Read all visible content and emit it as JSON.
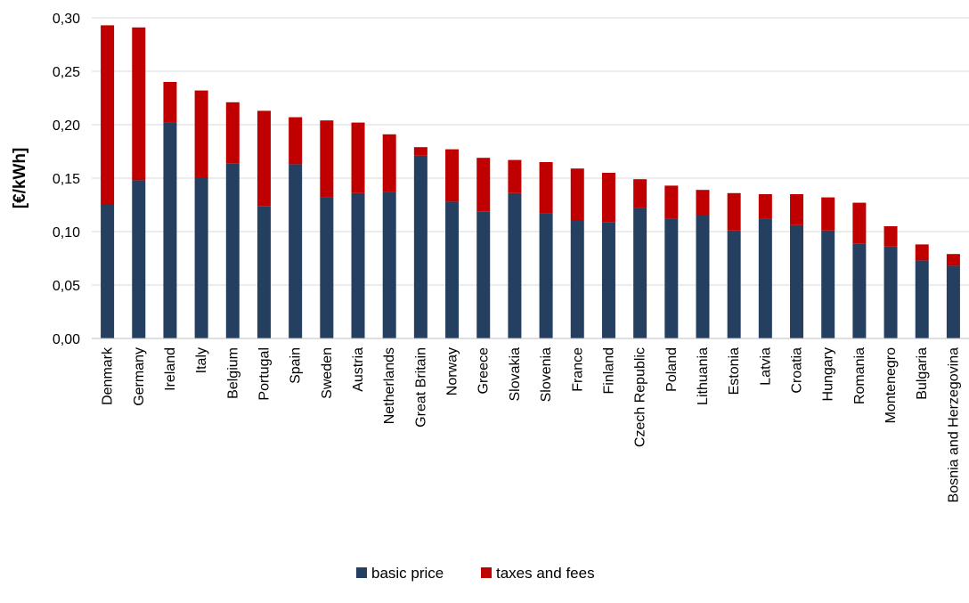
{
  "chart_data": {
    "type": "bar",
    "stacked": true,
    "ylabel": "[€/kWh]",
    "xlabel": "",
    "ylim": [
      0,
      0.3
    ],
    "yticks": [
      "0,00",
      "0,05",
      "0,10",
      "0,15",
      "0,20",
      "0,25",
      "0,30"
    ],
    "grid": true,
    "legend_position": "bottom",
    "categories": [
      "Denmark",
      "Germany",
      "Ireland",
      "Italy",
      "Belgium",
      "Portugal",
      "Spain",
      "Sweden",
      "Austria",
      "Netherlands",
      "Great Britain",
      "Norway",
      "Greece",
      "Slovakia",
      "Slovenia",
      "France",
      "Finland",
      "Czech Republic",
      "Poland",
      "Lithuania",
      "Estonia",
      "Latvia",
      "Croatia",
      "Hungary",
      "Romania",
      "Montenegro",
      "Bulgaria",
      "Bosnia and Herzegovina"
    ],
    "series": [
      {
        "name": "basic price",
        "color": "#243f60",
        "values": [
          0.125,
          0.148,
          0.202,
          0.15,
          0.164,
          0.124,
          0.163,
          0.132,
          0.136,
          0.137,
          0.171,
          0.128,
          0.119,
          0.136,
          0.117,
          0.11,
          0.109,
          0.122,
          0.112,
          0.115,
          0.101,
          0.112,
          0.106,
          0.101,
          0.089,
          0.086,
          0.073,
          0.068
        ]
      },
      {
        "name": "taxes and fees",
        "color": "#c00000",
        "values": [
          0.168,
          0.143,
          0.038,
          0.082,
          0.057,
          0.089,
          0.044,
          0.072,
          0.066,
          0.054,
          0.008,
          0.049,
          0.05,
          0.031,
          0.048,
          0.049,
          0.046,
          0.027,
          0.031,
          0.024,
          0.035,
          0.023,
          0.029,
          0.031,
          0.038,
          0.019,
          0.015,
          0.011
        ]
      }
    ]
  }
}
